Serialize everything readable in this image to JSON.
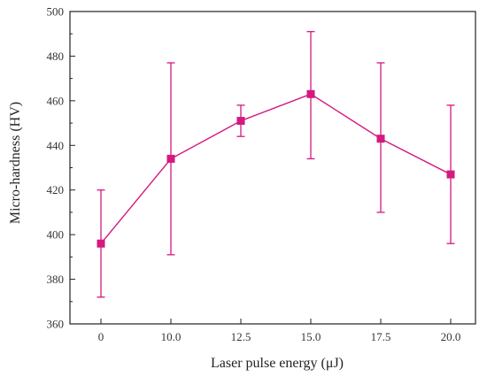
{
  "chart_data": {
    "type": "line",
    "categories": [
      "0",
      "10.0",
      "12.5",
      "15.0",
      "17.5",
      "20.0"
    ],
    "x": [
      0,
      10.0,
      12.5,
      15.0,
      17.5,
      20.0
    ],
    "series": [
      {
        "values": [
          396,
          434,
          451,
          463,
          443,
          427
        ],
        "error_low": [
          372,
          391,
          444,
          434,
          410,
          396
        ],
        "error_high": [
          420,
          477,
          458,
          491,
          477,
          458
        ],
        "color": "#d4197f",
        "marker": "square"
      }
    ],
    "title": "",
    "xlabel": "Laser pulse energy (μJ)",
    "ylabel": "Micro-hardness (HV)",
    "ylim": [
      360,
      500
    ],
    "yticks": [
      360,
      380,
      400,
      420,
      440,
      460,
      480,
      500
    ],
    "grid": false,
    "legend": "none"
  }
}
